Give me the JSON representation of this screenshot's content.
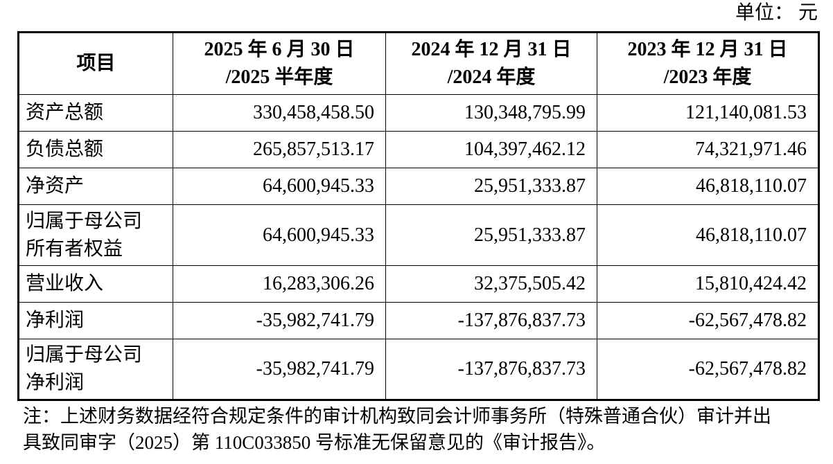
{
  "unit_label": "单位： 元",
  "table": {
    "header": {
      "item": "项目",
      "col2025": {
        "line1": "2025 年 6 月 30 日",
        "line2": "/2025 半年度"
      },
      "col2024": {
        "line1": "2024 年 12 月 31 日",
        "line2": "/2024 年度"
      },
      "col2023": {
        "line1": "2023 年 12 月 31 日",
        "line2": "/2023 年度"
      }
    },
    "rows": [
      {
        "label": "资产总额",
        "v2025": "330,458,458.50",
        "v2024": "130,348,795.99",
        "v2023": "121,140,081.53"
      },
      {
        "label": "负债总额",
        "v2025": "265,857,513.17",
        "v2024": "104,397,462.12",
        "v2023": "74,321,971.46"
      },
      {
        "label": "净资产",
        "v2025": "64,600,945.33",
        "v2024": "25,951,333.87",
        "v2023": "46,818,110.07"
      },
      {
        "label": "归属于母公司",
        "label2": "所有者权益",
        "v2025": "64,600,945.33",
        "v2024": "25,951,333.87",
        "v2023": "46,818,110.07"
      },
      {
        "label": "营业收入",
        "v2025": "16,283,306.26",
        "v2024": "32,375,505.42",
        "v2023": "15,810,424.42"
      },
      {
        "label": "净利润",
        "v2025": "-35,982,741.79",
        "v2024": "-137,876,837.73",
        "v2023": "-62,567,478.82"
      },
      {
        "label": "归属于母公司",
        "label2": "净利润",
        "v2025": "-35,982,741.79",
        "v2024": "-137,876,837.73",
        "v2023": "-62,567,478.82"
      }
    ]
  },
  "note": {
    "line1": "注：上述财务数据经符合规定条件的审计机构致同会计师事务所（特殊普通合伙）审计并出",
    "line2": "具致同审字（2025）第 110C033850 号标准无保留意见的《审计报告》。"
  }
}
